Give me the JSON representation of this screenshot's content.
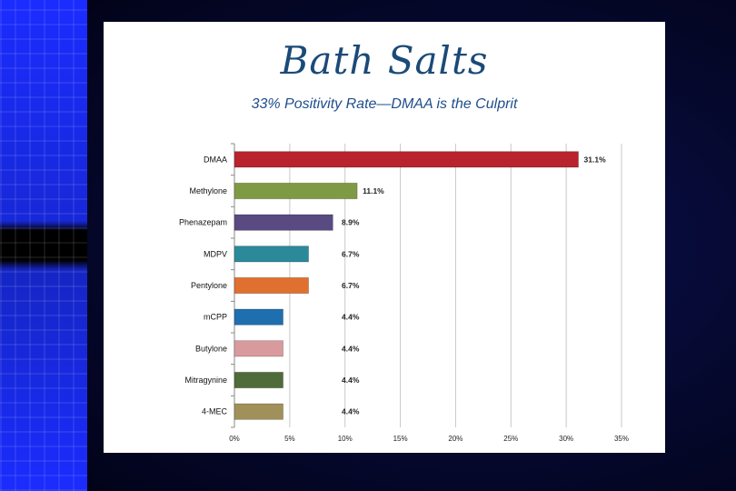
{
  "slide": {
    "title": "Bath Salts",
    "subtitle": "33% Positivity Rate—DMAA is the Culprit"
  },
  "chart_data": {
    "type": "bar",
    "orientation": "horizontal",
    "categories": [
      "DMAA",
      "Methylone",
      "Phenazepam",
      "MDPV",
      "Pentylone",
      "mCPP",
      "Butylone",
      "Mitragynine",
      "4-MEC"
    ],
    "values": [
      31.1,
      11.1,
      8.9,
      6.7,
      6.7,
      4.4,
      4.4,
      4.4,
      4.4
    ],
    "value_labels": [
      "31.1%",
      "11.1%",
      "8.9%",
      "6.7%",
      "6.7%",
      "4.4%",
      "4.4%",
      "4.4%",
      "4.4%"
    ],
    "colors": [
      "#b8232d",
      "#7f9a45",
      "#5a4a82",
      "#2a8a9a",
      "#e07030",
      "#1f6fb0",
      "#d99a9e",
      "#4f6b3a",
      "#a0905a"
    ],
    "xlim": [
      0,
      35
    ],
    "xticks": [
      0,
      5,
      10,
      15,
      20,
      25,
      30,
      35
    ],
    "xtick_labels": [
      "0%",
      "5%",
      "10%",
      "15%",
      "20%",
      "25%",
      "30%",
      "35%"
    ],
    "grid": true,
    "title": "",
    "xlabel": "",
    "ylabel": ""
  }
}
